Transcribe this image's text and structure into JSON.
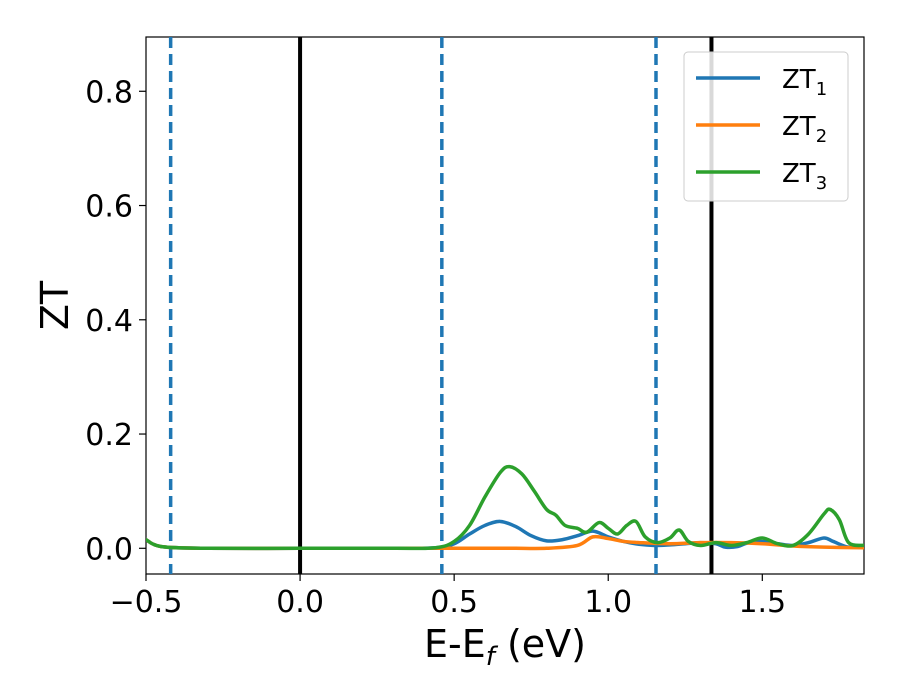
{
  "chart_data": {
    "type": "line",
    "xlabel": "E-E_f (eV)",
    "xlabel_main": "E-E",
    "xlabel_sub": "f",
    "xlabel_tail": " (eV)",
    "ylabel": "ZT",
    "xlim": [
      -0.5,
      1.83
    ],
    "ylim": [
      -0.045,
      0.895
    ],
    "xticks": [
      -0.5,
      0.0,
      0.5,
      1.0,
      1.5
    ],
    "xtick_labels": [
      "−0.5",
      "0.0",
      "0.5",
      "1.0",
      "1.5"
    ],
    "yticks": [
      0.0,
      0.2,
      0.4,
      0.6,
      0.8
    ],
    "ytick_labels": [
      "0.0",
      "0.2",
      "0.4",
      "0.6",
      "0.8"
    ],
    "legend_position": "top-right",
    "vlines": [
      {
        "x": -0.42,
        "style": "dashed",
        "color": "#1f77b4"
      },
      {
        "x": 0.0,
        "style": "solid",
        "color": "#000000"
      },
      {
        "x": 0.46,
        "style": "dashed",
        "color": "#1f77b4"
      },
      {
        "x": 1.155,
        "style": "dashed",
        "color": "#1f77b4"
      },
      {
        "x": 1.335,
        "style": "solid",
        "color": "#000000"
      }
    ],
    "series": [
      {
        "name": "ZT_1",
        "name_main": "ZT",
        "name_sub": "1",
        "color": "#1f77b4",
        "x": [
          -0.5,
          -0.45,
          -0.3,
          0.0,
          0.3,
          0.44,
          0.5,
          0.55,
          0.6,
          0.65,
          0.7,
          0.75,
          0.8,
          0.85,
          0.9,
          0.95,
          1.0,
          1.05,
          1.1,
          1.15,
          1.2,
          1.25,
          1.3,
          1.35,
          1.38,
          1.42,
          1.45,
          1.5,
          1.55,
          1.6,
          1.65,
          1.7,
          1.73,
          1.78,
          1.83
        ],
        "y": [
          0.015,
          0.003,
          0.0,
          0.0,
          0.0,
          0.001,
          0.008,
          0.025,
          0.04,
          0.047,
          0.038,
          0.022,
          0.013,
          0.015,
          0.022,
          0.03,
          0.02,
          0.012,
          0.007,
          0.005,
          0.006,
          0.008,
          0.01,
          0.008,
          0.002,
          0.003,
          0.009,
          0.012,
          0.008,
          0.005,
          0.01,
          0.018,
          0.012,
          0.002,
          0.005
        ]
      },
      {
        "name": "ZT_2",
        "name_main": "ZT",
        "name_sub": "2",
        "color": "#ff7f0e",
        "x": [
          -0.5,
          -0.45,
          -0.3,
          0.0,
          0.3,
          0.44,
          0.5,
          0.55,
          0.6,
          0.65,
          0.7,
          0.8,
          0.9,
          0.95,
          1.0,
          1.05,
          1.1,
          1.2,
          1.3,
          1.4,
          1.5,
          1.6,
          1.7,
          1.83
        ],
        "y": [
          0.015,
          0.003,
          0.0,
          0.0,
          0.0,
          0.0,
          0.0,
          0.0,
          0.0,
          0.0,
          0.0,
          0.0,
          0.005,
          0.02,
          0.017,
          0.012,
          0.01,
          0.008,
          0.01,
          0.01,
          0.008,
          0.004,
          0.002,
          0.001
        ]
      },
      {
        "name": "ZT_3",
        "name_main": "ZT",
        "name_sub": "3",
        "color": "#2ca02c",
        "x": [
          -0.5,
          -0.45,
          -0.3,
          0.0,
          0.3,
          0.44,
          0.5,
          0.55,
          0.6,
          0.65,
          0.68,
          0.72,
          0.76,
          0.8,
          0.83,
          0.86,
          0.9,
          0.93,
          0.97,
          1.0,
          1.03,
          1.06,
          1.09,
          1.12,
          1.16,
          1.2,
          1.23,
          1.26,
          1.3,
          1.35,
          1.4,
          1.45,
          1.5,
          1.55,
          1.6,
          1.65,
          1.7,
          1.72,
          1.75,
          1.78,
          1.83
        ],
        "y": [
          0.015,
          0.003,
          0.0,
          0.0,
          0.0,
          0.001,
          0.012,
          0.04,
          0.09,
          0.133,
          0.143,
          0.13,
          0.1,
          0.068,
          0.058,
          0.04,
          0.035,
          0.028,
          0.045,
          0.035,
          0.025,
          0.04,
          0.047,
          0.02,
          0.01,
          0.018,
          0.032,
          0.012,
          0.005,
          0.01,
          0.005,
          0.01,
          0.018,
          0.008,
          0.005,
          0.025,
          0.06,
          0.068,
          0.05,
          0.01,
          0.005
        ]
      }
    ]
  }
}
